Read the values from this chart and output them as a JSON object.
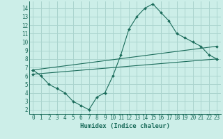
{
  "title": "",
  "xlabel": "Humidex (Indice chaleur)",
  "ylabel": "",
  "bg_color": "#cceee8",
  "grid_color": "#aad4ce",
  "line_color": "#1a6b5a",
  "xlim": [
    -0.5,
    23.5
  ],
  "ylim": [
    1.5,
    14.8
  ],
  "xticks": [
    0,
    1,
    2,
    3,
    4,
    5,
    6,
    7,
    8,
    9,
    10,
    11,
    12,
    13,
    14,
    15,
    16,
    17,
    18,
    19,
    20,
    21,
    22,
    23
  ],
  "yticks": [
    2,
    3,
    4,
    5,
    6,
    7,
    8,
    9,
    10,
    11,
    12,
    13,
    14
  ],
  "curve1_x": [
    0,
    1,
    2,
    3,
    4,
    5,
    6,
    7,
    8,
    9,
    10,
    11,
    12,
    13,
    14,
    15,
    16,
    17,
    18,
    19,
    20,
    21,
    22,
    23
  ],
  "curve1_y": [
    6.7,
    6.0,
    5.0,
    4.5,
    4.0,
    3.0,
    2.5,
    2.0,
    3.5,
    4.0,
    6.0,
    8.5,
    11.5,
    13.0,
    14.0,
    14.5,
    13.5,
    12.5,
    11.0,
    10.5,
    10.0,
    9.5,
    8.5,
    8.0
  ],
  "curve2_x": [
    0,
    23
  ],
  "curve2_y": [
    6.7,
    9.5
  ],
  "curve3_x": [
    0,
    23
  ],
  "curve3_y": [
    6.2,
    8.0
  ]
}
